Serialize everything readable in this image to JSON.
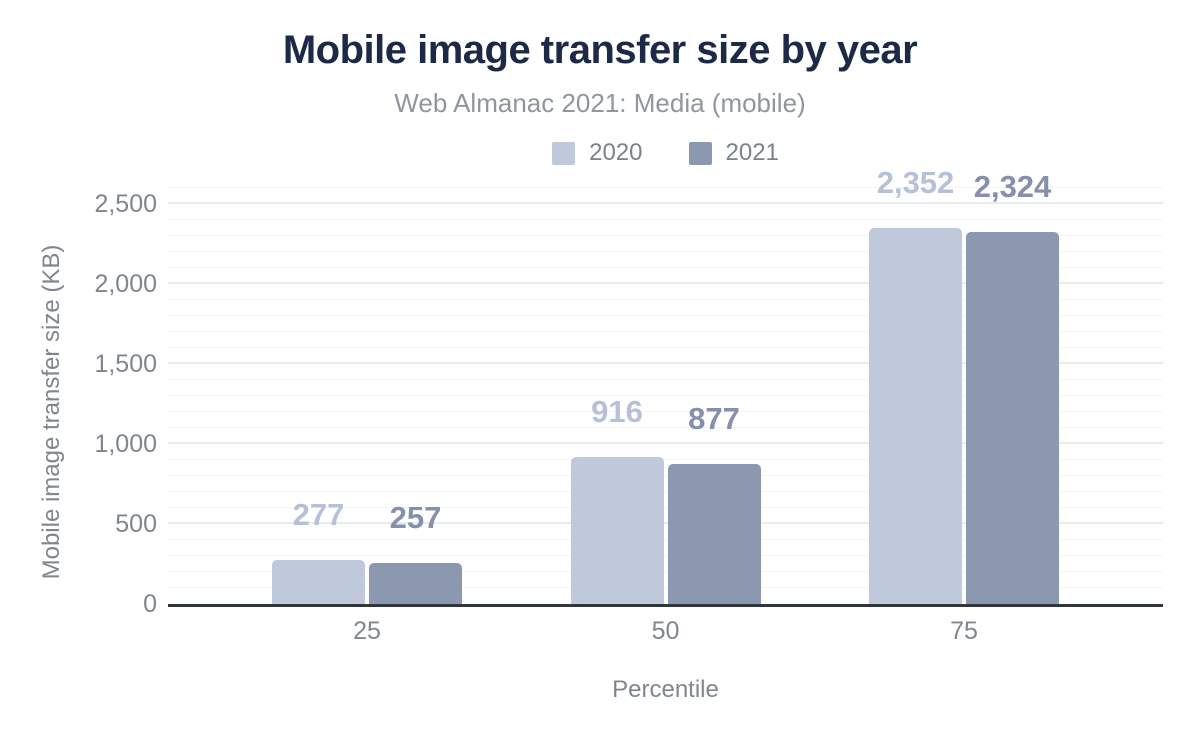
{
  "chart_data": {
    "type": "bar",
    "title": "Mobile image transfer size by year",
    "subtitle": "Web Almanac 2021: Media (mobile)",
    "categories": [
      "25",
      "50",
      "75"
    ],
    "series": [
      {
        "name": "2020",
        "values": [
          277,
          916,
          2352
        ],
        "value_labels": [
          "277",
          "916",
          "2,352"
        ],
        "color": "#bfc9db",
        "label_color": "#b6c1d7"
      },
      {
        "name": "2021",
        "values": [
          257,
          877,
          2324
        ],
        "value_labels": [
          "257",
          "877",
          "2,324"
        ],
        "color": "#8c97b0",
        "label_color": "#8490ac"
      }
    ],
    "xlabel": "Percentile",
    "ylabel": "Mobile image transfer size (KB)",
    "ylim": [
      0,
      2600
    ],
    "y_major_tick_values": [
      0,
      500,
      1000,
      1500,
      2000,
      2500
    ],
    "y_major_tick_labels": [
      "0",
      "500",
      "1,000",
      "1,500",
      "2,000",
      "2,500"
    ],
    "y_minor_step": 100,
    "grid": true,
    "legend_position": "top"
  },
  "colors": {
    "background": "#ffffff",
    "title": "#1c2947",
    "subtitle": "#8f969f",
    "axis_text": "#80868f",
    "legend_text": "#7b828c",
    "axis_line": "#31353c",
    "grid_major": "#e9ebef",
    "grid_minor": "#f4f5f8"
  }
}
